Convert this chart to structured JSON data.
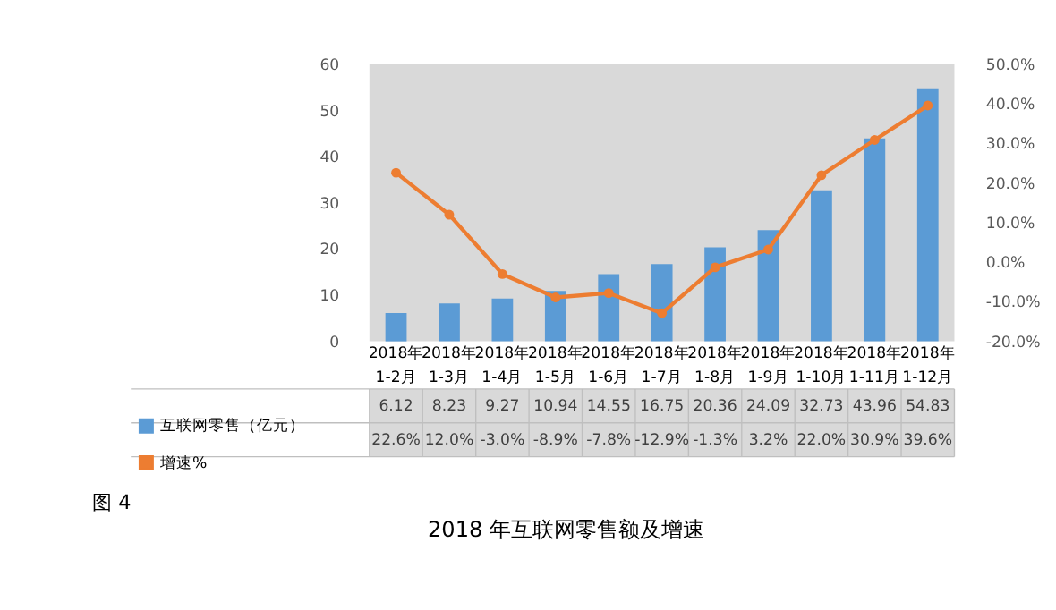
{
  "chart_data": {
    "type": "bar",
    "title": "2018 年互联网零售额及增速",
    "annotations": [
      "图 4"
    ],
    "categories": [
      "2018年\n1-2月",
      "2018年\n1-3月",
      "2018年\n1-4月",
      "2018年\n1-5月",
      "2018年\n1-6月",
      "2018年\n1-7月",
      "2018年\n1-8月",
      "2018年\n1-9月",
      "2018年\n1-10月",
      "2018年\n1-11月",
      "2018年\n1-12月"
    ],
    "series": [
      {
        "name": "互联网零售（亿元）",
        "color": "#5b9bd5",
        "values": [
          6.12,
          8.23,
          9.27,
          10.94,
          14.55,
          16.75,
          20.36,
          24.09,
          32.73,
          43.96,
          54.83
        ],
        "value_labels": [
          "6.12",
          "8.23",
          "9.27",
          "10.94",
          "14.55",
          "16.75",
          "20.36",
          "24.09",
          "32.73",
          "43.96",
          "54.83"
        ]
      },
      {
        "name": "增速%",
        "type": "line",
        "axis": "y2",
        "color": "#ed7d31",
        "marker": "circle",
        "values": [
          22.6,
          12.0,
          -3.0,
          -8.9,
          -7.8,
          -12.9,
          -1.3,
          3.2,
          22.0,
          30.9,
          39.6
        ],
        "value_labels": [
          "22.6%",
          "12.0%",
          "-3.0%",
          "-8.9%",
          "-7.8%",
          "-12.9%",
          "-1.3%",
          "3.2%",
          "22.0%",
          "30.9%",
          "39.6%"
        ]
      }
    ],
    "ylim": [
      0,
      60
    ],
    "yticks": [
      0,
      10,
      20,
      30,
      40,
      50,
      60
    ],
    "y2lim": [
      -20,
      50
    ],
    "y2ticks": [
      {
        "value": -20,
        "label": "-20.0%"
      },
      {
        "value": -10,
        "label": "-10.0%"
      },
      {
        "value": 0,
        "label": "0.0%"
      },
      {
        "value": 10,
        "label": "10.0%"
      },
      {
        "value": 20,
        "label": "20.0%"
      },
      {
        "value": 30,
        "label": "30.0%"
      },
      {
        "value": 40,
        "label": "40.0%"
      },
      {
        "value": 50,
        "label": "50.0%"
      }
    ],
    "grid": false,
    "legend": "bottom"
  }
}
